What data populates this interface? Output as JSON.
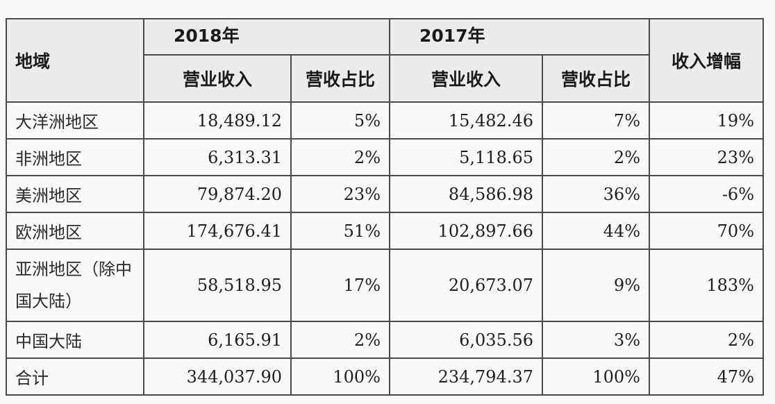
{
  "header": {
    "region": "地域",
    "year_2018": "2018年",
    "year_2017": "2017年",
    "revenue": "营业收入",
    "share": "营收占比",
    "growth": "收入增幅"
  },
  "rows": [
    {
      "region": "大洋洲地区",
      "rev2018": "18,489.12",
      "share2018": "5%",
      "rev2017": "15,482.46",
      "share2017": "7%",
      "growth": "19%"
    },
    {
      "region": "非洲地区",
      "rev2018": "6,313.31",
      "share2018": "2%",
      "rev2017": "5,118.65",
      "share2017": "2%",
      "growth": "23%"
    },
    {
      "region": "美洲地区",
      "rev2018": "79,874.20",
      "share2018": "23%",
      "rev2017": "84,586.98",
      "share2017": "36%",
      "growth": "-6%"
    },
    {
      "region": "欧洲地区",
      "rev2018": "174,676.41",
      "share2018": "51%",
      "rev2017": "102,897.66",
      "share2017": "44%",
      "growth": "70%"
    },
    {
      "region": "亚洲地区（除中国大陆）",
      "rev2018": "58,518.95",
      "share2018": "17%",
      "rev2017": "20,673.07",
      "share2017": "9%",
      "growth": "183%"
    },
    {
      "region": "中国大陆",
      "rev2018": "6,165.91",
      "share2018": "2%",
      "rev2017": "6,035.56",
      "share2017": "3%",
      "growth": "2%"
    },
    {
      "region": "合计",
      "rev2018": "344,037.90",
      "share2018": "100%",
      "rev2017": "234,794.37",
      "share2017": "100%",
      "growth": "47%"
    }
  ]
}
